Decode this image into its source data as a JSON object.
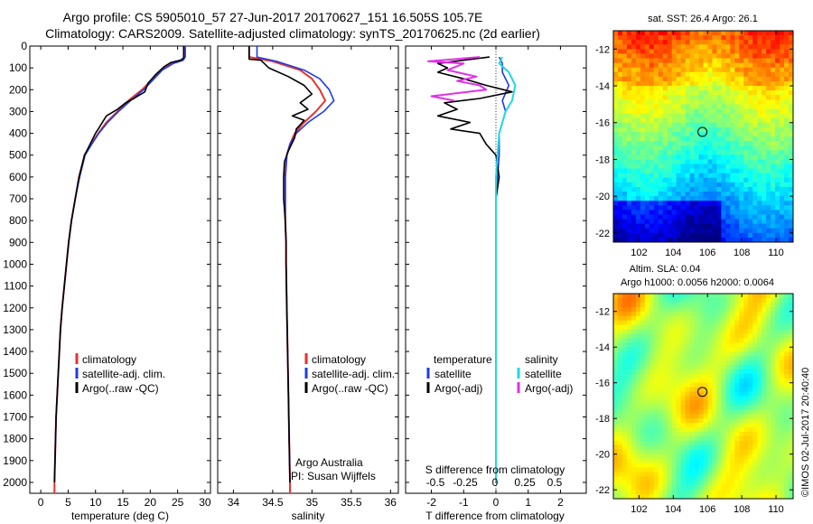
{
  "header": {
    "title_line1": "Argo profile: CS 5905010_57 27-Jun-2017 20170627_151 16.505S 105.7E",
    "title_line2": "Climatology: CARS2009. Satellite-adjusted climatology: synTS_20170625.nc (2d earlier)"
  },
  "colors": {
    "climatology": "#e8322b",
    "satellite": "#1f3ce8",
    "argo": "#000000",
    "sat_salinity": "#21d7e6",
    "argo_adj_salinity": "#e22fe6"
  },
  "y_axis": {
    "ticks": [
      0,
      100,
      200,
      300,
      400,
      500,
      600,
      700,
      800,
      900,
      1000,
      1100,
      1200,
      1300,
      1400,
      1500,
      1600,
      1700,
      1800,
      1900,
      2000
    ],
    "range": [
      0,
      2050
    ]
  },
  "panels": {
    "temperature": {
      "xlabel": "temperature (deg C)",
      "xticks": [
        0,
        5,
        10,
        15,
        20,
        25,
        30
      ],
      "legend": [
        "climatology",
        "satellite-adj. clim.",
        "Argo(..raw -QC)"
      ]
    },
    "salinity": {
      "xlabel": "salinity",
      "xticks": [
        34,
        34.5,
        35,
        35.5,
        36
      ],
      "legend": [
        "climatology",
        "satellite-adj. clim.",
        "Argo(..raw -QC)"
      ],
      "note_line1": "Argo Australia",
      "note_line2": "PI: Susan Wijffels"
    },
    "difference": {
      "top_label": "S difference from climatology",
      "top_ticks": [
        "-0.5",
        "-0.25",
        "0",
        "0.25",
        "0.5"
      ],
      "xlabel": "T difference from climatology",
      "bottom_ticks": [
        -2,
        -1,
        0,
        1,
        2
      ],
      "legend_t_title": "temperature",
      "legend_t_items": [
        "satellite",
        "Argo(-adj)"
      ],
      "legend_s_title": "salinity",
      "legend_s_items": [
        "satellite",
        "Argo(-adj)"
      ]
    },
    "sst_map": {
      "title": "sat. SST: 26.4  Argo: 26.1",
      "yticks": [
        -12,
        -14,
        -16,
        -18,
        -20,
        -22
      ],
      "xticks": [
        102,
        104,
        106,
        108,
        110
      ],
      "profile_lon": 105.7,
      "profile_lat": -16.505
    },
    "sla_map": {
      "title_line1": "Altim. SLA: 0.04",
      "title_line2": "Argo h1000: 0.0056 h2000: 0.0064",
      "yticks": [
        -12,
        -14,
        -16,
        -18,
        -20,
        -22
      ],
      "xticks": [
        102,
        104,
        106,
        108,
        110
      ],
      "profile_lon": 105.7,
      "profile_lat": -16.505
    }
  },
  "watermark": "©IMOS 02-Jul-2017 20:40:40",
  "chart_data": [
    {
      "type": "line",
      "xlabel": "temperature (deg C)",
      "ylabel": "",
      "xlim": [
        -2,
        31
      ],
      "ylim": [
        2050,
        0
      ],
      "series": [
        {
          "name": "climatology",
          "points": [
            [
              26.3,
              0
            ],
            [
              26.3,
              50
            ],
            [
              25.9,
              65
            ],
            [
              24,
              80
            ],
            [
              22,
              110
            ],
            [
              20.5,
              150
            ],
            [
              18.5,
              200
            ],
            [
              16,
              250
            ],
            [
              14,
              300
            ],
            [
              12,
              350
            ],
            [
              10.5,
              400
            ],
            [
              9.2,
              450
            ],
            [
              8,
              500
            ],
            [
              7,
              600
            ],
            [
              6.3,
              700
            ],
            [
              5.6,
              800
            ],
            [
              5.1,
              900
            ],
            [
              4.7,
              1000
            ],
            [
              4.3,
              1100
            ],
            [
              3.9,
              1200
            ],
            [
              3.6,
              1300
            ],
            [
              3.4,
              1400
            ],
            [
              3.2,
              1500
            ],
            [
              3.0,
              1600
            ],
            [
              2.8,
              1700
            ],
            [
              2.7,
              1800
            ],
            [
              2.6,
              1900
            ],
            [
              2.5,
              2000
            ],
            [
              2.5,
              2050
            ]
          ]
        },
        {
          "name": "satellite-adj. clim.",
          "points": [
            [
              26.4,
              0
            ],
            [
              26.4,
              50
            ],
            [
              26,
              65
            ],
            [
              24.2,
              80
            ],
            [
              22.2,
              110
            ],
            [
              20.7,
              150
            ],
            [
              18.8,
              200
            ],
            [
              16.4,
              250
            ],
            [
              14.2,
              300
            ],
            [
              12.2,
              350
            ],
            [
              10.6,
              400
            ],
            [
              9.3,
              450
            ],
            [
              8.1,
              500
            ],
            [
              7.1,
              600
            ],
            [
              6.3,
              700
            ],
            [
              5.6,
              800
            ],
            [
              5.1,
              900
            ],
            [
              4.7,
              1000
            ],
            [
              4.3,
              1100
            ],
            [
              3.9,
              1200
            ],
            [
              3.6,
              1300
            ],
            [
              3.4,
              1400
            ],
            [
              3.2,
              1500
            ],
            [
              3.0,
              1600
            ],
            [
              2.8,
              1700
            ],
            [
              2.7,
              1800
            ],
            [
              2.6,
              1900
            ],
            [
              2.5,
              2000
            ]
          ]
        },
        {
          "name": "Argo(..raw -QC)",
          "points": [
            [
              26.1,
              0
            ],
            [
              26.1,
              55
            ],
            [
              25.5,
              65
            ],
            [
              23.8,
              75
            ],
            [
              22.5,
              95
            ],
            [
              21,
              130
            ],
            [
              19.6,
              170
            ],
            [
              19,
              210
            ],
            [
              17,
              240
            ],
            [
              15.5,
              260
            ],
            [
              14,
              290
            ],
            [
              12,
              320
            ],
            [
              11.5,
              340
            ],
            [
              10.5,
              380
            ],
            [
              10,
              400
            ],
            [
              9,
              450
            ],
            [
              8,
              500
            ],
            [
              7,
              600
            ],
            [
              6.3,
              700
            ],
            [
              5.6,
              800
            ],
            [
              5.1,
              900
            ],
            [
              4.7,
              1000
            ],
            [
              4.3,
              1100
            ],
            [
              3.9,
              1200
            ],
            [
              3.6,
              1300
            ],
            [
              3.4,
              1400
            ],
            [
              3.2,
              1500
            ],
            [
              3.0,
              1600
            ],
            [
              2.8,
              1700
            ],
            [
              2.7,
              1800
            ],
            [
              2.6,
              1900
            ],
            [
              2.5,
              2000
            ]
          ]
        }
      ]
    },
    {
      "type": "line",
      "xlabel": "salinity",
      "ylabel": "",
      "xlim": [
        33.8,
        36.1
      ],
      "ylim": [
        2050,
        0
      ],
      "series": [
        {
          "name": "climatology",
          "points": [
            [
              34.2,
              0
            ],
            [
              34.2,
              50
            ],
            [
              34.5,
              70
            ],
            [
              34.85,
              110
            ],
            [
              35.0,
              150
            ],
            [
              35.1,
              200
            ],
            [
              35.17,
              250
            ],
            [
              35.05,
              300
            ],
            [
              34.9,
              350
            ],
            [
              34.78,
              400
            ],
            [
              34.72,
              450
            ],
            [
              34.68,
              500
            ],
            [
              34.66,
              600
            ],
            [
              34.66,
              700
            ],
            [
              34.66,
              800
            ],
            [
              34.67,
              900
            ],
            [
              34.67,
              1000
            ],
            [
              34.68,
              1200
            ],
            [
              34.69,
              1400
            ],
            [
              34.7,
              1600
            ],
            [
              34.71,
              1800
            ],
            [
              34.72,
              2000
            ],
            [
              34.72,
              2050
            ]
          ]
        },
        {
          "name": "satellite-adj. clim.",
          "points": [
            [
              34.3,
              0
            ],
            [
              34.3,
              50
            ],
            [
              34.55,
              70
            ],
            [
              34.9,
              110
            ],
            [
              35.1,
              150
            ],
            [
              35.22,
              200
            ],
            [
              35.28,
              250
            ],
            [
              35.15,
              300
            ],
            [
              34.95,
              350
            ],
            [
              34.8,
              400
            ],
            [
              34.72,
              450
            ],
            [
              34.68,
              500
            ],
            [
              34.66,
              600
            ],
            [
              34.66,
              700
            ],
            [
              34.66,
              800
            ],
            [
              34.67,
              900
            ],
            [
              34.67,
              1000
            ],
            [
              34.68,
              1200
            ],
            [
              34.69,
              1400
            ],
            [
              34.7,
              1600
            ],
            [
              34.71,
              1800
            ],
            [
              34.72,
              2000
            ]
          ]
        },
        {
          "name": "Argo(..raw -QC)",
          "points": [
            [
              34.2,
              0
            ],
            [
              34.2,
              60
            ],
            [
              34.35,
              65
            ],
            [
              34.45,
              100
            ],
            [
              34.7,
              140
            ],
            [
              34.9,
              180
            ],
            [
              35.0,
              220
            ],
            [
              34.85,
              260
            ],
            [
              34.95,
              290
            ],
            [
              34.75,
              320
            ],
            [
              34.9,
              340
            ],
            [
              34.8,
              380
            ],
            [
              34.78,
              420
            ],
            [
              34.7,
              480
            ],
            [
              34.65,
              530
            ],
            [
              34.64,
              600
            ],
            [
              34.64,
              700
            ],
            [
              34.66,
              800
            ],
            [
              34.67,
              900
            ],
            [
              34.67,
              1000
            ],
            [
              34.68,
              1200
            ],
            [
              34.69,
              1400
            ],
            [
              34.7,
              1600
            ],
            [
              34.71,
              1800
            ],
            [
              34.72,
              2000
            ]
          ]
        }
      ]
    },
    {
      "type": "line",
      "xlabel": "T difference from climatology",
      "ylabel": "",
      "xlim": [
        -2.8,
        2.8
      ],
      "ylim": [
        2050,
        0
      ],
      "series": [
        {
          "name": "temperature satellite",
          "points": [
            [
              0.1,
              50
            ],
            [
              0.2,
              80
            ],
            [
              0.2,
              120
            ],
            [
              0.4,
              180
            ],
            [
              0.2,
              250
            ],
            [
              0.3,
              300
            ],
            [
              0.2,
              350
            ],
            [
              0.1,
              400
            ],
            [
              0.1,
              500
            ],
            [
              0.05,
              600
            ],
            [
              0,
              700
            ],
            [
              0,
              800
            ],
            [
              0,
              1000
            ],
            [
              0,
              1500
            ],
            [
              0,
              2000
            ]
          ]
        },
        {
          "name": "temperature Argo(-adj)",
          "points": [
            [
              -0.2,
              50
            ],
            [
              -1.8,
              80
            ],
            [
              -1.5,
              100
            ],
            [
              -1.8,
              120
            ],
            [
              -1.0,
              150
            ],
            [
              -0.3,
              180
            ],
            [
              0.5,
              210
            ],
            [
              -0.5,
              240
            ],
            [
              -1.6,
              260
            ],
            [
              -1.2,
              290
            ],
            [
              -1.8,
              320
            ],
            [
              -0.8,
              350
            ],
            [
              -1.4,
              380
            ],
            [
              -0.5,
              400
            ],
            [
              -0.3,
              450
            ],
            [
              0,
              500
            ],
            [
              0.1,
              600
            ],
            [
              0,
              700
            ],
            [
              0,
              800
            ],
            [
              0,
              1000
            ],
            [
              0,
              1500
            ],
            [
              0,
              2000
            ]
          ]
        },
        {
          "name": "salinity satellite",
          "points": [
            [
              0.2,
              50
            ],
            [
              0.1,
              80
            ],
            [
              0.4,
              120
            ],
            [
              0.6,
              180
            ],
            [
              0.5,
              250
            ],
            [
              0.3,
              300
            ],
            [
              0.2,
              350
            ],
            [
              0.1,
              400
            ],
            [
              0.05,
              500
            ],
            [
              0,
              600
            ],
            [
              0,
              700
            ],
            [
              0,
              1000
            ],
            [
              0,
              1500
            ],
            [
              0,
              2000
            ]
          ]
        },
        {
          "name": "salinity Argo(-adj)",
          "points": [
            [
              -0.5,
              50
            ],
            [
              -2.1,
              70
            ],
            [
              -1.0,
              80
            ],
            [
              -1.5,
              110
            ],
            [
              -0.6,
              140
            ],
            [
              -1.2,
              160
            ],
            [
              -0.5,
              180
            ],
            [
              -0.3,
              200
            ],
            [
              -2.0,
              230
            ],
            [
              -1.3,
              250
            ]
          ]
        }
      ]
    },
    {
      "type": "heatmap",
      "title": "sat. SST: 26.4  Argo: 26.1",
      "xlim": [
        100.5,
        111
      ],
      "ylim": [
        -22.5,
        -11
      ],
      "colorscale": "jet"
    },
    {
      "type": "heatmap",
      "title": "Altim. SLA: 0.04",
      "xlim": [
        100.5,
        111
      ],
      "ylim": [
        -22.5,
        -11
      ],
      "colorscale": "jet"
    }
  ]
}
